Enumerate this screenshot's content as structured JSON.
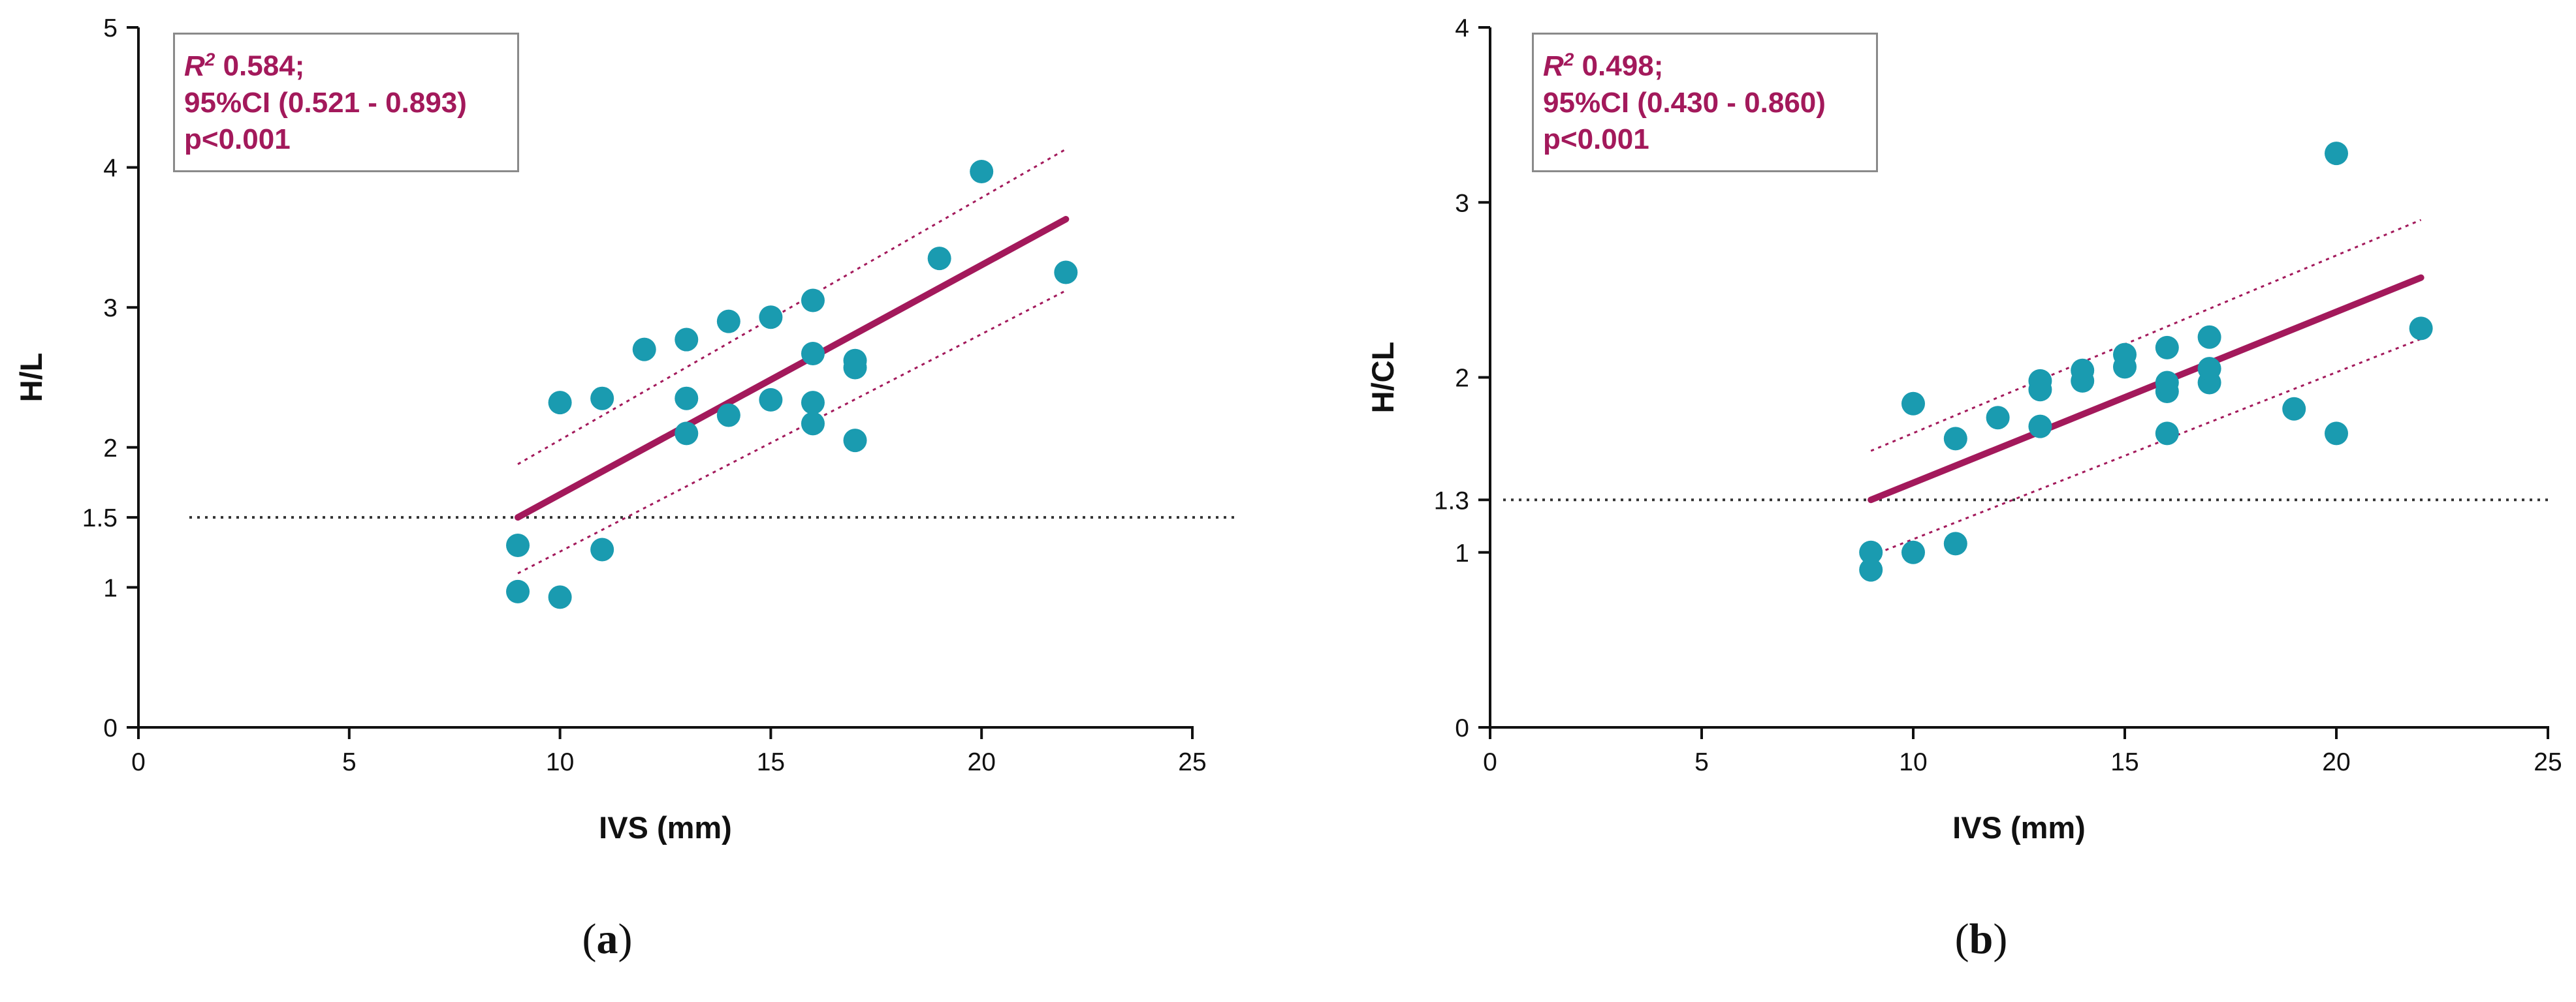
{
  "chart_data": [
    {
      "type": "scatter",
      "panel_label": "a",
      "xlabel": "IVS (mm)",
      "ylabel": "H/L",
      "xlim": [
        0,
        25
      ],
      "ylim": [
        0,
        5
      ],
      "xticks": [
        "0",
        "5",
        "10",
        "15",
        "20",
        "25"
      ],
      "yticks": [
        "0",
        "1",
        "1.5",
        "2",
        "3",
        "4",
        "5"
      ],
      "cutoff": 1.5,
      "cutoff_label": "1.5",
      "annotation": {
        "r2_label": "R",
        "r2_sup": "2",
        "r2_value": " 0.584;",
        "ci": "95%CI (0.521 - 0.893)",
        "p": "p<0.001"
      },
      "points": [
        [
          9,
          0.97
        ],
        [
          9,
          1.3
        ],
        [
          10,
          0.93
        ],
        [
          10,
          2.32
        ],
        [
          11,
          1.27
        ],
        [
          11,
          2.35
        ],
        [
          12,
          2.7
        ],
        [
          13,
          2.1
        ],
        [
          13,
          2.35
        ],
        [
          13,
          2.77
        ],
        [
          14,
          2.23
        ],
        [
          14,
          2.9
        ],
        [
          15,
          2.34
        ],
        [
          15,
          2.93
        ],
        [
          16,
          2.17
        ],
        [
          16,
          2.32
        ],
        [
          16,
          2.67
        ],
        [
          16,
          3.05
        ],
        [
          17,
          2.05
        ],
        [
          17,
          2.57
        ],
        [
          17,
          2.62
        ],
        [
          19,
          3.35
        ],
        [
          20,
          3.97
        ],
        [
          22,
          3.25
        ]
      ],
      "regression": {
        "x": [
          9,
          22
        ],
        "y": [
          1.5,
          3.63
        ]
      },
      "ci_upper": {
        "x": [
          9,
          22
        ],
        "y": [
          1.88,
          4.13
        ]
      },
      "ci_lower": {
        "x": [
          9,
          22
        ],
        "y": [
          1.1,
          3.12
        ]
      }
    },
    {
      "type": "scatter",
      "panel_label": "b",
      "xlabel": "IVS (mm)",
      "ylabel": "H/CL",
      "xlim": [
        0,
        25
      ],
      "ylim": [
        0,
        4
      ],
      "xticks": [
        "0",
        "5",
        "10",
        "15",
        "20",
        "25"
      ],
      "yticks": [
        "0",
        "1",
        "1.3",
        "2",
        "3",
        "4"
      ],
      "cutoff": 1.3,
      "cutoff_label": "1.3",
      "annotation": {
        "r2_label": "R",
        "r2_sup": "2",
        "r2_value": " 0.498;",
        "ci": "95%CI (0.430 - 0.860)",
        "p": "p<0.001"
      },
      "points": [
        [
          9,
          0.9
        ],
        [
          9,
          1.0
        ],
        [
          10,
          1.0
        ],
        [
          10,
          1.85
        ],
        [
          11,
          1.05
        ],
        [
          11,
          1.65
        ],
        [
          12,
          1.77
        ],
        [
          13,
          1.72
        ],
        [
          13,
          1.93
        ],
        [
          13,
          1.98
        ],
        [
          14,
          1.98
        ],
        [
          14,
          2.04
        ],
        [
          15,
          2.06
        ],
        [
          15,
          2.13
        ],
        [
          16,
          1.68
        ],
        [
          16,
          1.92
        ],
        [
          16,
          1.97
        ],
        [
          16,
          2.17
        ],
        [
          17,
          1.97
        ],
        [
          17,
          2.05
        ],
        [
          17,
          2.23
        ],
        [
          19,
          1.82
        ],
        [
          20,
          1.68
        ],
        [
          20,
          3.28
        ],
        [
          22,
          2.28
        ]
      ],
      "regression": {
        "x": [
          9,
          22
        ],
        "y": [
          1.3,
          2.57
        ]
      },
      "ci_upper": {
        "x": [
          9,
          22
        ],
        "y": [
          1.58,
          2.9
        ]
      },
      "ci_lower": {
        "x": [
          9,
          22
        ],
        "y": [
          0.98,
          2.22
        ]
      }
    }
  ],
  "colors": {
    "point": "#1a9bb0",
    "regression": "#a3195b",
    "axis": "#111111",
    "cutoff": "#333333"
  }
}
